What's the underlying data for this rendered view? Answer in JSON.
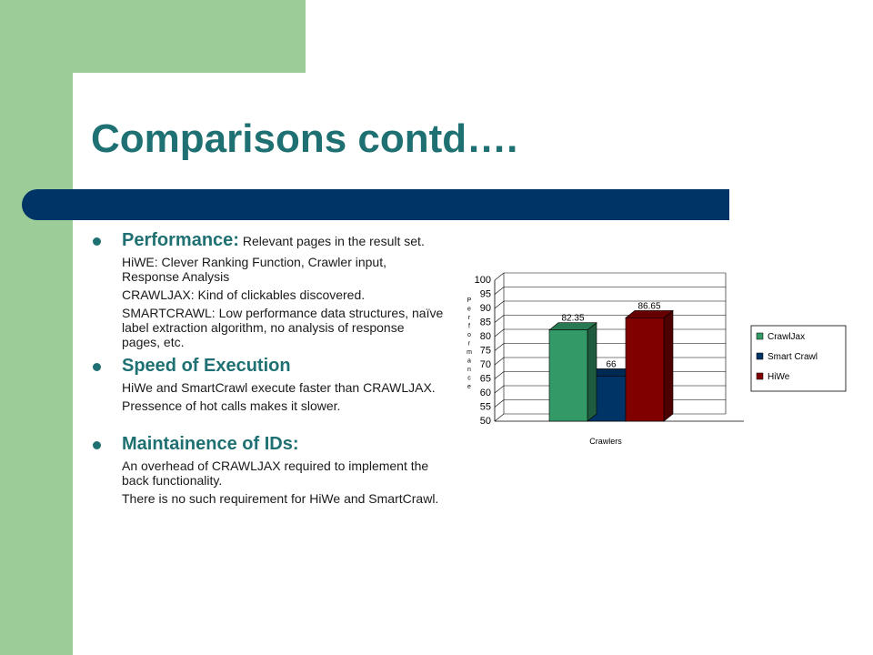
{
  "slide": {
    "title": "Comparisons contd….",
    "sections": [
      {
        "heading": "Performance:",
        "lead": " Relevant pages in the result set.",
        "subs": [
          "HiWE: Clever Ranking Function, Crawler input, Response Analysis",
          "CRAWLJAX: Kind of clickables discovered.",
          "SMARTCRAWL: Low performance data structures, naïve label extraction algorithm, no analysis of response pages, etc."
        ]
      },
      {
        "heading": "Speed of Execution",
        "lead": "",
        "subs": [
          "HiWe and SmartCrawl execute faster than CRAWLJAX.",
          "Pressence of hot calls makes it slower."
        ]
      },
      {
        "heading": "Maintainence of IDs:",
        "lead": "",
        "subs": [
          "An overhead of CRAWLJAX required to implement the back functionality.",
          "There is no such requirement for HiWe and SmartCrawl."
        ]
      }
    ]
  },
  "colors": {
    "accent_green": "#9ccc98",
    "title_teal": "#1f7072",
    "band_navy": "#003366"
  },
  "chart_data": {
    "type": "bar",
    "subtype": "3d-grouped",
    "categories": [
      "Crawlers"
    ],
    "series": [
      {
        "name": "CrawlJax",
        "values": [
          82.35
        ],
        "color": "#339966"
      },
      {
        "name": "Smart Crawl",
        "values": [
          66
        ],
        "color": "#003366"
      },
      {
        "name": "HiWe",
        "values": [
          86.65
        ],
        "color": "#800000"
      }
    ],
    "data_labels": [
      "82.35",
      "66",
      "86.65"
    ],
    "xlabel": "Crawlers",
    "ylabel": "Performance",
    "ylim": [
      50,
      100
    ],
    "yticks": [
      50,
      55,
      60,
      65,
      70,
      75,
      80,
      85,
      90,
      95,
      100
    ],
    "grid": true,
    "legend": "right"
  }
}
